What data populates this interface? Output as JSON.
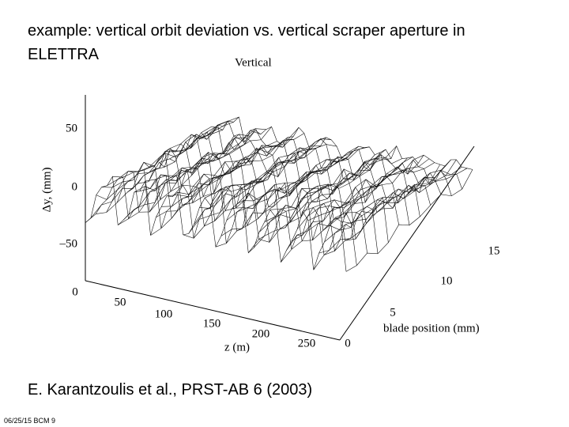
{
  "header": {
    "title": "example: vertical orbit deviation vs. vertical scraper aperture in ELETTRA"
  },
  "figure": {
    "title": "Vertical",
    "y_label": "Δy, (mm)",
    "y_ticks": [
      "50",
      "0",
      "–50"
    ],
    "z_label": "z (m)",
    "z_ticks": [
      "0",
      "50",
      "100",
      "150",
      "200",
      "250"
    ],
    "blade_label": "blade position (mm)",
    "blade_ticks": [
      "0",
      "5",
      "10",
      "15"
    ]
  },
  "caption": "E. Karantzoulis et al., PRST-AB 6 (2003)",
  "footer": "06/25/15 BCM 9"
}
